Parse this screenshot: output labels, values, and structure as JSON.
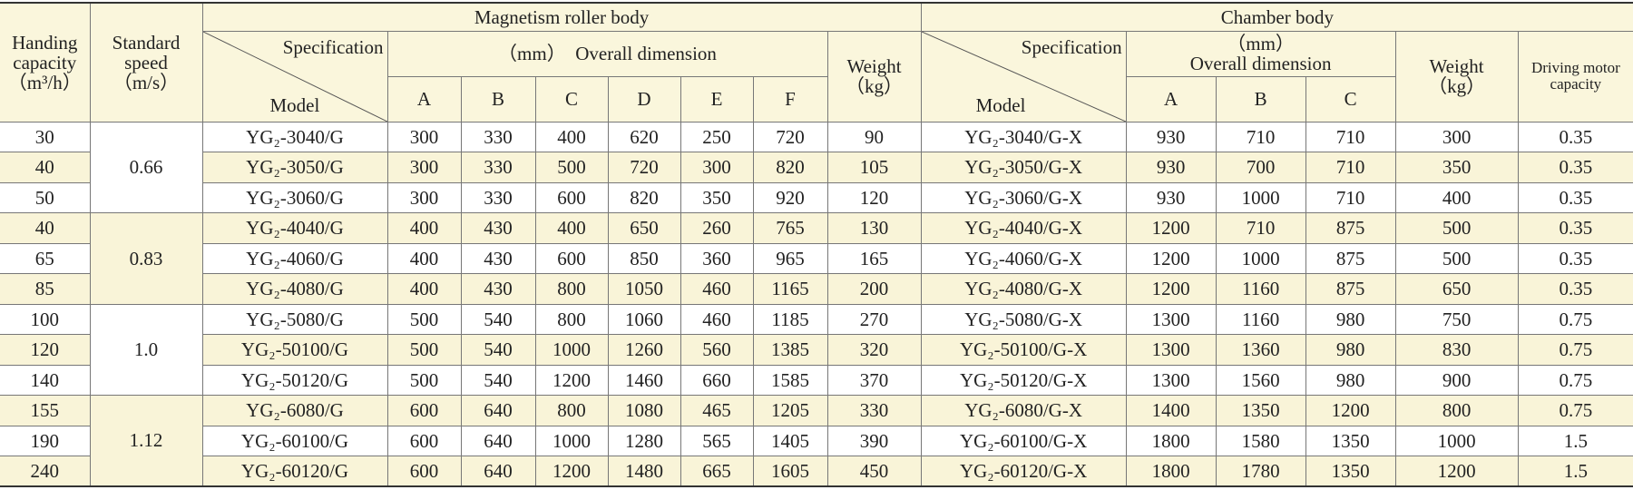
{
  "table": {
    "handing_capacity": "Handing capacity",
    "handing_unit": "（m³/h）",
    "standard_speed": "Standard speed",
    "speed_unit": "（m/s）",
    "roller": {
      "title": "Magnetism roller body",
      "specification": "Specification",
      "model": "Model",
      "unit": "（mm）",
      "dimension": "Overall  dimension",
      "columns": [
        "A",
        "B",
        "C",
        "D",
        "E",
        "F"
      ],
      "weight": "Weight",
      "weight_unit": "（kg）"
    },
    "chamber": {
      "title": "Chamber body",
      "specification": "Specification",
      "model": "Model",
      "unit": "（mm）",
      "dimension": "Overall  dimension",
      "columns": [
        "A",
        "B",
        "C"
      ],
      "weight": "Weight",
      "weight_unit": "（kg）",
      "motor": "Driving motor capacity"
    },
    "groups": [
      {
        "speed": "0.66",
        "rows": [
          [
            30,
            "YG₂-3040/G",
            300,
            330,
            400,
            620,
            250,
            720,
            90,
            "YG₂-3040/G-X",
            930,
            710,
            710,
            300,
            0.35
          ],
          [
            40,
            "YG₂-3050/G",
            300,
            330,
            500,
            720,
            300,
            820,
            105,
            "YG₂-3050/G-X",
            930,
            700,
            710,
            350,
            0.35
          ],
          [
            50,
            "YG₂-3060/G",
            300,
            330,
            600,
            820,
            350,
            920,
            120,
            "YG₂-3060/G-X",
            930,
            1000,
            710,
            400,
            0.35
          ]
        ]
      },
      {
        "speed": "0.83",
        "rows": [
          [
            40,
            "YG₂-4040/G",
            400,
            430,
            400,
            650,
            260,
            765,
            130,
            "YG₂-4040/G-X",
            1200,
            710,
            875,
            500,
            0.35
          ],
          [
            65,
            "YG₂-4060/G",
            400,
            430,
            600,
            850,
            360,
            965,
            165,
            "YG₂-4060/G-X",
            1200,
            1000,
            875,
            500,
            0.35
          ],
          [
            85,
            "YG₂-4080/G",
            400,
            430,
            800,
            1050,
            460,
            1165,
            200,
            "YG₂-4080/G-X",
            1200,
            1160,
            875,
            650,
            0.35
          ]
        ]
      },
      {
        "speed": "1.0",
        "rows": [
          [
            100,
            "YG₂-5080/G",
            500,
            540,
            800,
            1060,
            460,
            1185,
            270,
            "YG₂-5080/G-X",
            1300,
            1160,
            980,
            750,
            0.75
          ],
          [
            120,
            "YG₂-50100/G",
            500,
            540,
            1000,
            1260,
            560,
            1385,
            320,
            "YG₂-50100/G-X",
            1300,
            1360,
            980,
            830,
            0.75
          ],
          [
            140,
            "YG₂-50120/G",
            500,
            540,
            1200,
            1460,
            660,
            1585,
            370,
            "YG₂-50120/G-X",
            1300,
            1560,
            980,
            900,
            0.75
          ]
        ]
      },
      {
        "speed": "1.12",
        "rows": [
          [
            155,
            "YG₂-6080/G",
            600,
            640,
            800,
            1080,
            465,
            1205,
            330,
            "YG₂-6080/G-X",
            1400,
            1350,
            1200,
            800,
            0.75
          ],
          [
            190,
            "YG₂-60100/G",
            600,
            640,
            1000,
            1280,
            565,
            1405,
            390,
            "YG₂-60100/G-X",
            1800,
            1580,
            1350,
            1000,
            1.5
          ],
          [
            240,
            "YG₂-60120/G",
            600,
            640,
            1200,
            1480,
            665,
            1605,
            450,
            "YG₂-60120/G-X",
            1800,
            1780,
            1350,
            1200,
            1.5
          ]
        ]
      }
    ]
  }
}
